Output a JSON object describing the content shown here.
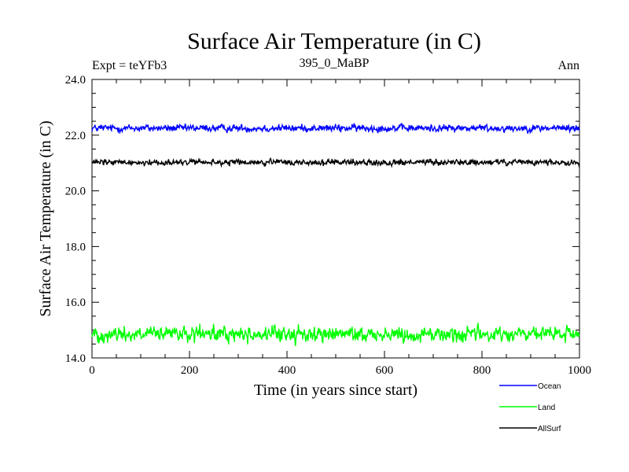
{
  "chart_data": {
    "type": "line",
    "title": "Surface Air Temperature (in C)",
    "subtitle_left": "Expt = teYFb3",
    "subtitle_center": "395_0_MaBP",
    "subtitle_right": "Ann",
    "xlabel": "Time (in years since start)",
    "ylabel": "Surface Air Temperature (in C)",
    "xlim": [
      0,
      1000
    ],
    "ylim": [
      14.0,
      24.0
    ],
    "xticks": [
      0,
      200,
      400,
      600,
      800,
      1000
    ],
    "xtick_labels": [
      "0",
      "200",
      "400",
      "600",
      "800",
      "1000"
    ],
    "yticks": [
      14.0,
      16.0,
      18.0,
      20.0,
      22.0,
      24.0
    ],
    "ytick_labels": [
      "14.0",
      "16.0",
      "18.0",
      "20.0",
      "22.0",
      "24.0"
    ],
    "grid": false,
    "legend_position": "bottom-right, below plot",
    "series": [
      {
        "name": "Ocean",
        "color": "#0000ff",
        "mean": 22.25,
        "noise_amplitude": 0.06,
        "n_points": 1000
      },
      {
        "name": "Land",
        "color": "#00ff00",
        "mean": 14.85,
        "noise_amplitude": 0.13,
        "n_points": 1000
      },
      {
        "name": "AllSurf",
        "color": "#000000",
        "mean": 21.02,
        "noise_amplitude": 0.05,
        "n_points": 1000
      }
    ]
  }
}
